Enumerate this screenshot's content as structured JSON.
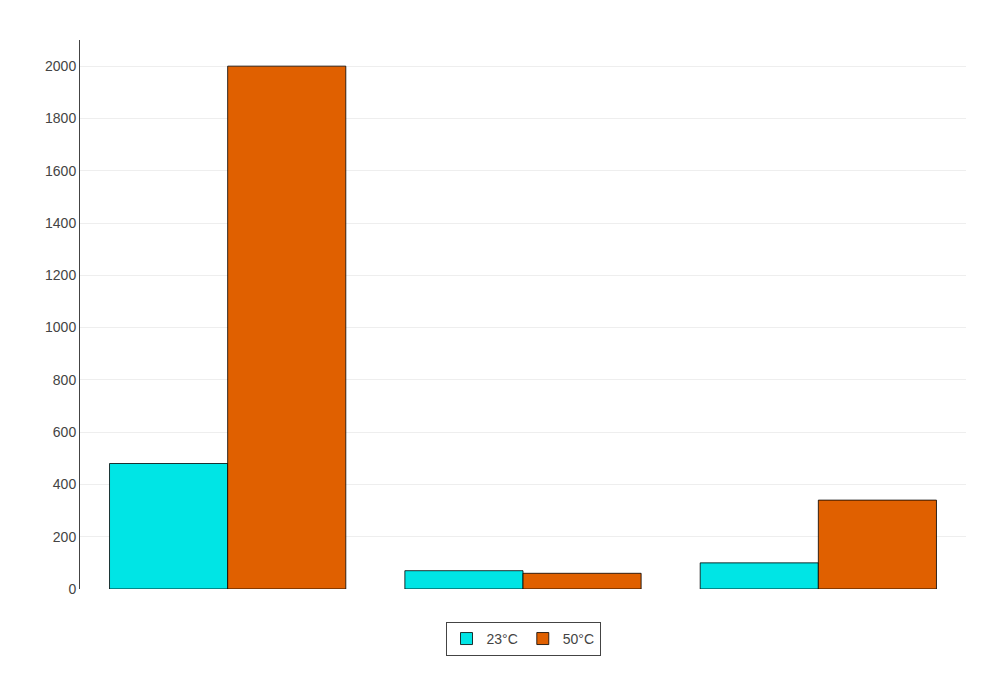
{
  "chart_data": {
    "type": "bar",
    "categories": [
      null,
      null,
      null
    ],
    "series": [
      {
        "name": "23°C",
        "color": "#00E5E5",
        "values": [
          480,
          70,
          100
        ]
      },
      {
        "name": "50°C",
        "color": "#E06000",
        "values": [
          2000,
          60,
          340
        ]
      }
    ],
    "ylim": [
      0,
      2100
    ],
    "yticks": [
      0,
      200,
      400,
      600,
      800,
      1000,
      1200,
      1400,
      1600,
      1800,
      2000
    ],
    "grid": true,
    "legend": "bottom",
    "tick_labels": "y"
  }
}
